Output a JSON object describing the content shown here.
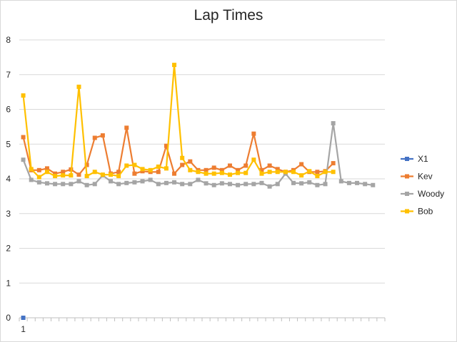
{
  "chart_data": {
    "type": "line",
    "title": "Lap Times",
    "xlabel": "",
    "ylabel": "",
    "ylim": [
      0,
      8
    ],
    "y_ticks": [
      "0",
      "1",
      "2",
      "3",
      "4",
      "5",
      "6",
      "7",
      "8"
    ],
    "x_tick_labels": [
      "1"
    ],
    "x_count": 46,
    "grid": "horizontal",
    "legend_position": "right",
    "series": [
      {
        "name": "X1",
        "color": "#4472c4",
        "values": [
          0
        ]
      },
      {
        "name": "Kev",
        "color": "#ed7d31",
        "values": [
          5.2,
          4.25,
          4.25,
          4.3,
          4.15,
          4.2,
          4.27,
          4.12,
          4.4,
          5.18,
          5.25,
          4.15,
          4.2,
          5.47,
          4.15,
          4.22,
          4.2,
          4.2,
          4.95,
          4.15,
          4.4,
          4.5,
          4.25,
          4.25,
          4.32,
          4.25,
          4.38,
          4.25,
          4.38,
          5.3,
          4.25,
          4.38,
          4.28,
          4.2,
          4.25,
          4.42,
          4.2,
          4.2,
          4.22,
          4.45
        ]
      },
      {
        "name": "Woody",
        "color": "#a5a5a5",
        "values": [
          4.55,
          3.97,
          3.9,
          3.87,
          3.85,
          3.85,
          3.85,
          3.93,
          3.82,
          3.85,
          4.1,
          3.93,
          3.85,
          3.88,
          3.9,
          3.93,
          3.97,
          3.85,
          3.88,
          3.9,
          3.85,
          3.85,
          3.97,
          3.87,
          3.82,
          3.87,
          3.85,
          3.82,
          3.85,
          3.85,
          3.88,
          3.78,
          3.85,
          4.15,
          3.88,
          3.87,
          3.9,
          3.82,
          3.85,
          5.6,
          3.93,
          3.88,
          3.88,
          3.85,
          3.82
        ]
      },
      {
        "name": "Bob",
        "color": "#ffc000",
        "values": [
          6.4,
          4.28,
          4.05,
          4.2,
          4.08,
          4.1,
          4.1,
          6.65,
          4.08,
          4.2,
          4.12,
          4.12,
          4.08,
          4.38,
          4.4,
          4.28,
          4.25,
          4.35,
          4.3,
          7.28,
          4.6,
          4.25,
          4.2,
          4.15,
          4.15,
          4.17,
          4.12,
          4.17,
          4.17,
          4.55,
          4.15,
          4.2,
          4.2,
          4.2,
          4.2,
          4.1,
          4.22,
          4.08,
          4.2,
          4.2
        ]
      }
    ]
  }
}
